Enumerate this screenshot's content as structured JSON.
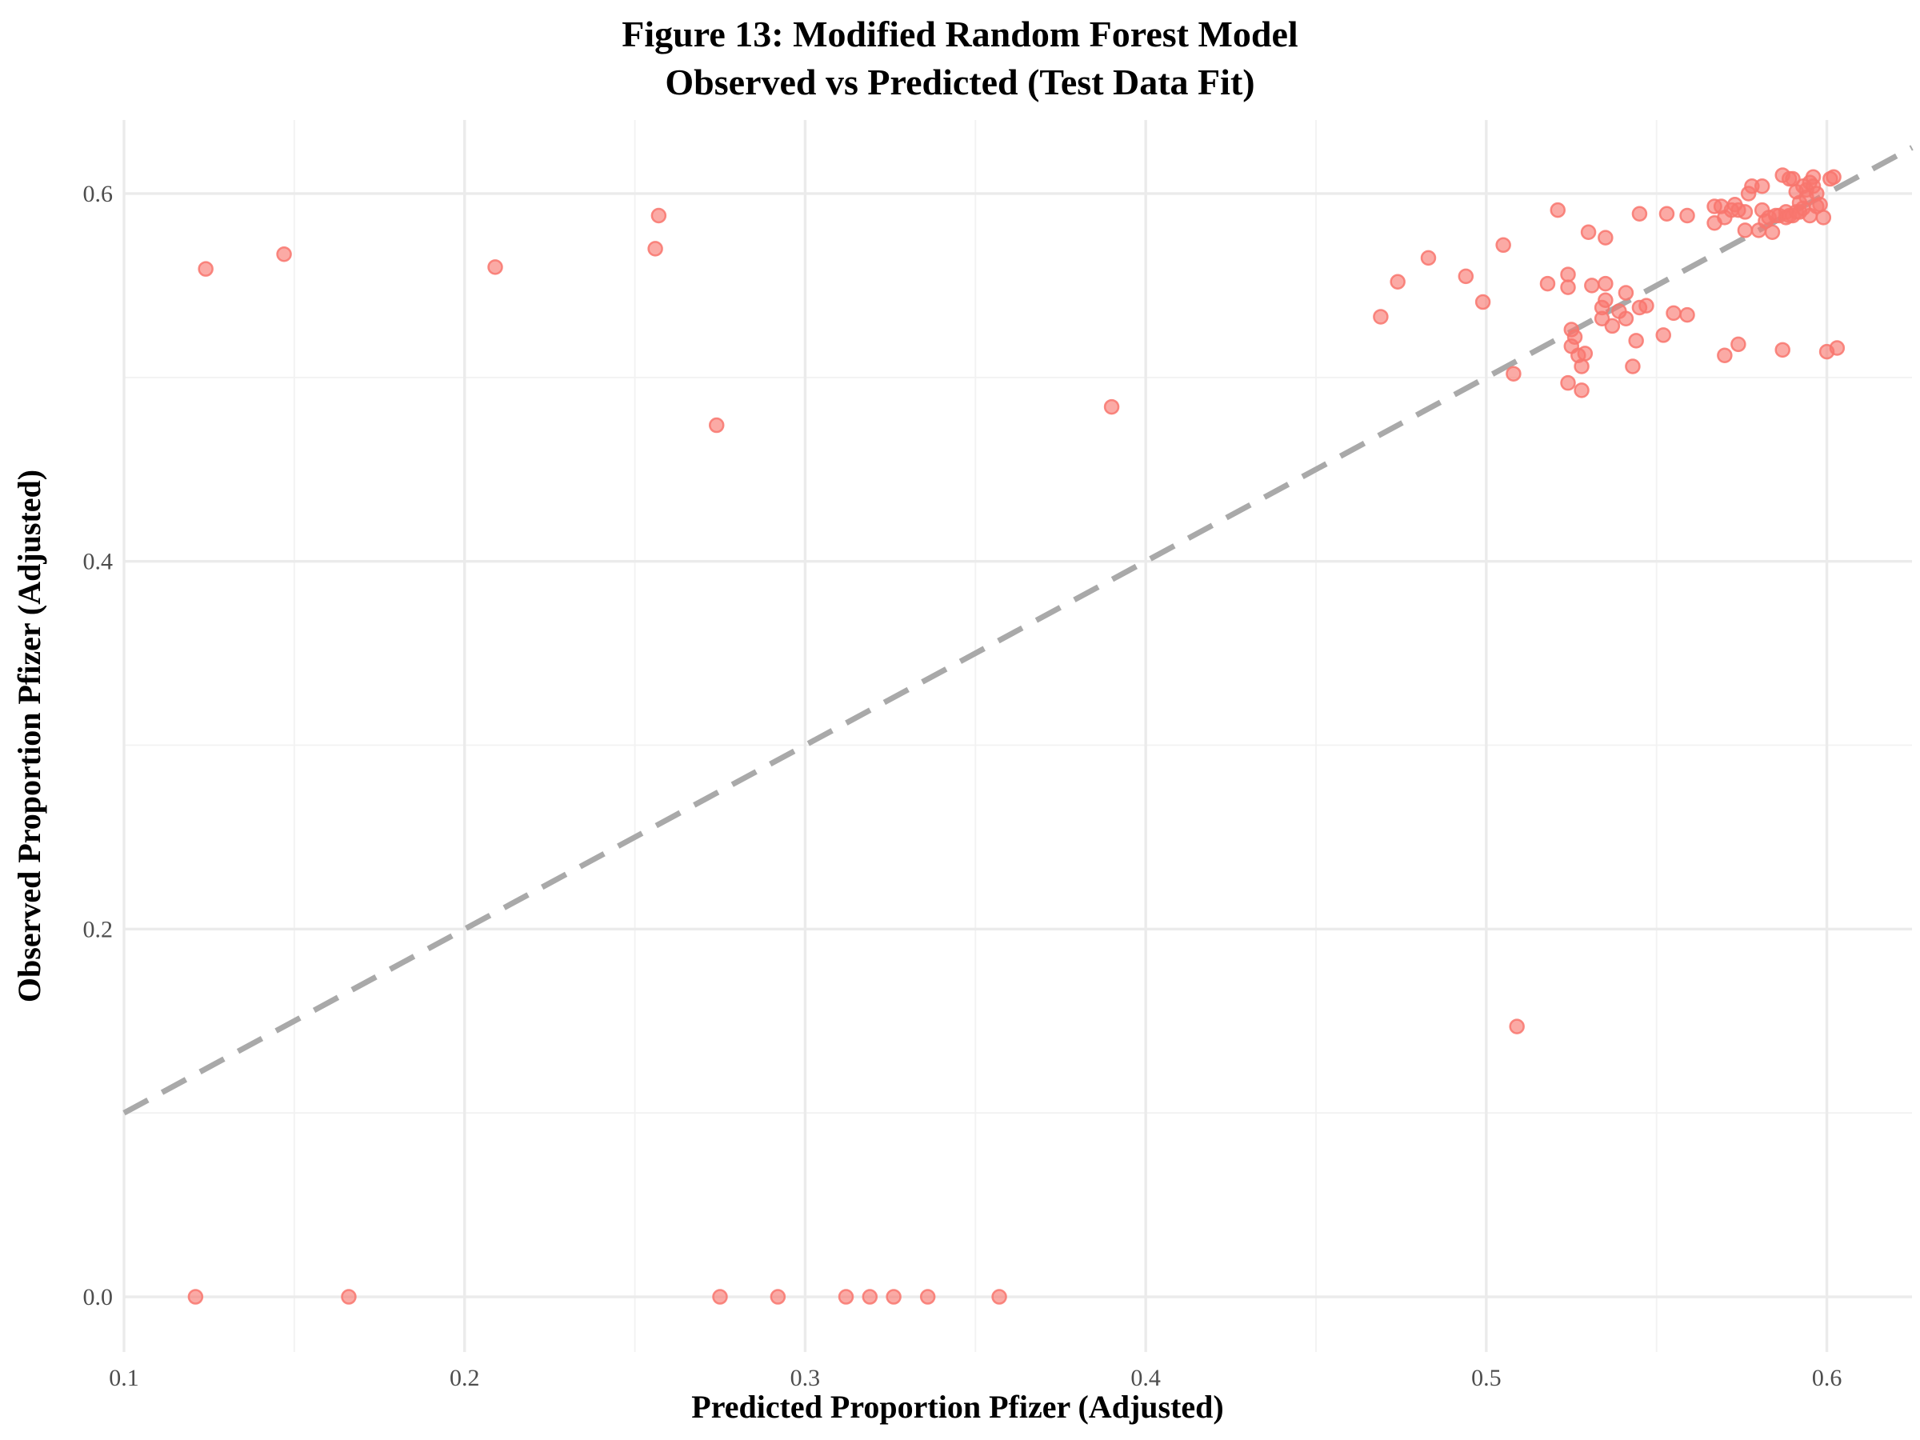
{
  "chart_data": {
    "type": "scatter",
    "title_lines": [
      "Figure 13: Modified Random Forest Model",
      "Observed vs Predicted (Test Data Fit)"
    ],
    "xlabel": "Predicted Proportion Pfizer (Adjusted)",
    "ylabel": "Observed Proportion Pfizer (Adjusted)",
    "xlim": [
      0.1,
      0.625
    ],
    "ylim": [
      -0.03,
      0.64
    ],
    "x_ticks": [
      0.1,
      0.2,
      0.3,
      0.4,
      0.5,
      0.6
    ],
    "x_tick_labels": [
      "0.1",
      "0.2",
      "0.3",
      "0.4",
      "0.5",
      "0.6"
    ],
    "y_ticks": [
      0.0,
      0.2,
      0.4,
      0.6
    ],
    "y_tick_labels": [
      "0.0",
      "0.2",
      "0.4",
      "0.6"
    ],
    "grid": true,
    "reference_line": "y = x",
    "colors": {
      "points": "#f8766d",
      "reference_line": "#a9a9a9",
      "grid": "#ebebeb"
    },
    "points": [
      [
        0.121,
        0.0
      ],
      [
        0.166,
        0.0
      ],
      [
        0.275,
        0.0
      ],
      [
        0.292,
        0.0
      ],
      [
        0.312,
        0.0
      ],
      [
        0.319,
        0.0
      ],
      [
        0.326,
        0.0
      ],
      [
        0.336,
        0.0
      ],
      [
        0.357,
        0.0
      ],
      [
        0.124,
        0.559
      ],
      [
        0.147,
        0.567
      ],
      [
        0.209,
        0.56
      ],
      [
        0.256,
        0.57
      ],
      [
        0.257,
        0.588
      ],
      [
        0.274,
        0.474
      ],
      [
        0.39,
        0.484
      ],
      [
        0.509,
        0.147
      ],
      [
        0.469,
        0.533
      ],
      [
        0.474,
        0.552
      ],
      [
        0.483,
        0.565
      ],
      [
        0.494,
        0.555
      ],
      [
        0.499,
        0.541
      ],
      [
        0.505,
        0.572
      ],
      [
        0.508,
        0.502
      ],
      [
        0.518,
        0.551
      ],
      [
        0.521,
        0.591
      ],
      [
        0.524,
        0.549
      ],
      [
        0.524,
        0.556
      ],
      [
        0.524,
        0.497
      ],
      [
        0.525,
        0.526
      ],
      [
        0.525,
        0.517
      ],
      [
        0.526,
        0.522
      ],
      [
        0.527,
        0.512
      ],
      [
        0.528,
        0.493
      ],
      [
        0.528,
        0.506
      ],
      [
        0.529,
        0.513
      ],
      [
        0.53,
        0.579
      ],
      [
        0.531,
        0.55
      ],
      [
        0.534,
        0.538
      ],
      [
        0.534,
        0.532
      ],
      [
        0.535,
        0.551
      ],
      [
        0.535,
        0.542
      ],
      [
        0.535,
        0.576
      ],
      [
        0.537,
        0.528
      ],
      [
        0.539,
        0.536
      ],
      [
        0.541,
        0.532
      ],
      [
        0.541,
        0.546
      ],
      [
        0.543,
        0.506
      ],
      [
        0.544,
        0.52
      ],
      [
        0.545,
        0.538
      ],
      [
        0.545,
        0.589
      ],
      [
        0.547,
        0.539
      ],
      [
        0.552,
        0.523
      ],
      [
        0.553,
        0.589
      ],
      [
        0.555,
        0.535
      ],
      [
        0.559,
        0.534
      ],
      [
        0.559,
        0.588
      ],
      [
        0.567,
        0.584
      ],
      [
        0.567,
        0.593
      ],
      [
        0.569,
        0.593
      ],
      [
        0.57,
        0.512
      ],
      [
        0.57,
        0.587
      ],
      [
        0.572,
        0.591
      ],
      [
        0.573,
        0.594
      ],
      [
        0.574,
        0.591
      ],
      [
        0.574,
        0.518
      ],
      [
        0.576,
        0.59
      ],
      [
        0.576,
        0.58
      ],
      [
        0.577,
        0.6
      ],
      [
        0.578,
        0.604
      ],
      [
        0.58,
        0.58
      ],
      [
        0.581,
        0.591
      ],
      [
        0.581,
        0.604
      ],
      [
        0.582,
        0.585
      ],
      [
        0.583,
        0.587
      ],
      [
        0.584,
        0.579
      ],
      [
        0.585,
        0.588
      ],
      [
        0.586,
        0.588
      ],
      [
        0.587,
        0.61
      ],
      [
        0.587,
        0.515
      ],
      [
        0.588,
        0.59
      ],
      [
        0.588,
        0.587
      ],
      [
        0.589,
        0.608
      ],
      [
        0.589,
        0.588
      ],
      [
        0.59,
        0.608
      ],
      [
        0.59,
        0.588
      ],
      [
        0.591,
        0.59
      ],
      [
        0.591,
        0.601
      ],
      [
        0.592,
        0.59
      ],
      [
        0.592,
        0.595
      ],
      [
        0.593,
        0.604
      ],
      [
        0.593,
        0.592
      ],
      [
        0.594,
        0.602
      ],
      [
        0.594,
        0.598
      ],
      [
        0.595,
        0.588
      ],
      [
        0.595,
        0.606
      ],
      [
        0.596,
        0.609
      ],
      [
        0.596,
        0.604
      ],
      [
        0.597,
        0.593
      ],
      [
        0.597,
        0.6
      ],
      [
        0.598,
        0.594
      ],
      [
        0.599,
        0.587
      ],
      [
        0.6,
        0.514
      ],
      [
        0.601,
        0.608
      ],
      [
        0.602,
        0.609
      ],
      [
        0.603,
        0.516
      ]
    ]
  }
}
